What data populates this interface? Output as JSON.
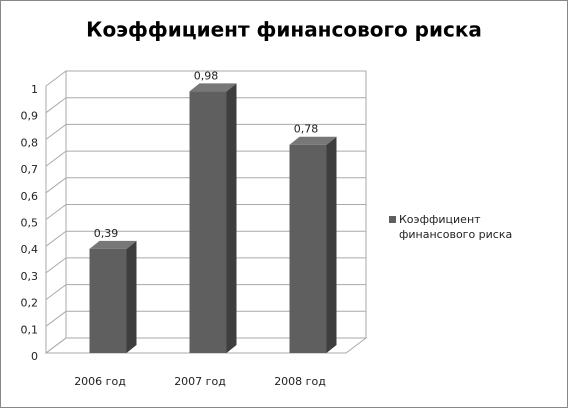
{
  "chart_data": {
    "type": "bar3d",
    "title": "Коэффициент финансового риска",
    "categories": [
      "2006 год",
      "2007 год",
      "2008 год"
    ],
    "series": [
      {
        "name": "Коэффициент финансового риска",
        "color": "#5f5f5f",
        "values": [
          0.39,
          0.98,
          0.78
        ],
        "value_labels": [
          "0,39",
          "0,98",
          "0,78"
        ]
      }
    ],
    "ylim": [
      0,
      1
    ],
    "yticks": [
      0,
      {
        "value": 0.1,
        "label": "0,1"
      },
      {
        "value": 0.2,
        "label": "0,2"
      },
      {
        "value": 0.3,
        "label": "0,3"
      },
      {
        "value": 0.4,
        "label": "0,4"
      },
      {
        "value": 0.5,
        "label": "0,5"
      },
      {
        "value": 0.6,
        "label": "0,6"
      },
      {
        "value": 0.7,
        "label": "0,7"
      },
      {
        "value": 0.8,
        "label": "0,8"
      },
      {
        "value": 0.9,
        "label": "0,9"
      },
      1
    ],
    "grid": true,
    "legend": "right"
  }
}
